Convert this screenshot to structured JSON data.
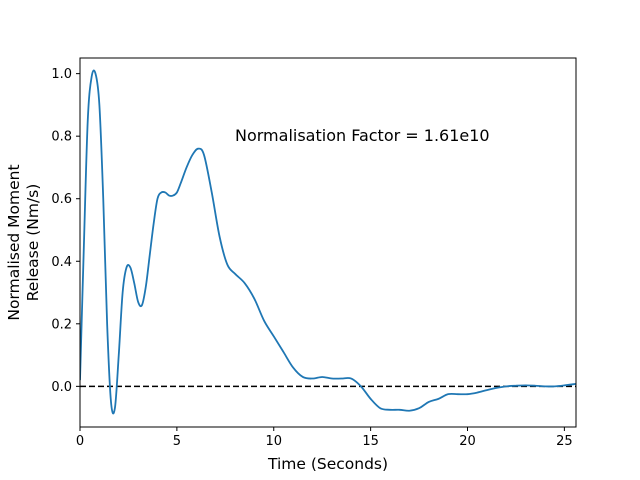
{
  "chart_data": {
    "type": "line",
    "title": "",
    "xlabel": "Time (Seconds)",
    "ylabel_lines": [
      "Normalised Moment",
      "Release (Nm/s)"
    ],
    "xlim": [
      0,
      25.6
    ],
    "ylim": [
      -0.13,
      1.05
    ],
    "xticks": [
      0,
      5,
      10,
      15,
      20,
      25
    ],
    "yticks": [
      0.0,
      0.2,
      0.4,
      0.6,
      0.8,
      1.0
    ],
    "xtick_labels": [
      "0",
      "5",
      "10",
      "15",
      "20",
      "25"
    ],
    "ytick_labels": [
      "0.0",
      "0.2",
      "0.4",
      "0.6",
      "0.8",
      "1.0"
    ],
    "grid": false,
    "annotation": {
      "text": "Normalisation Factor = 1.61e10",
      "x": 8.0,
      "y": 0.8
    },
    "reference_line": {
      "y": 0.0,
      "style": "dashed",
      "color": "#000000"
    },
    "series": [
      {
        "color": "#1f77b4",
        "x": [
          0,
          0.2,
          0.4,
          0.6,
          0.8,
          1.0,
          1.2,
          1.4,
          1.6,
          1.8,
          2.0,
          2.2,
          2.4,
          2.6,
          2.8,
          3.0,
          3.2,
          3.4,
          3.6,
          3.8,
          4.0,
          4.2,
          4.4,
          4.6,
          4.8,
          5.0,
          5.2,
          5.5,
          5.8,
          6.1,
          6.4,
          6.8,
          7.2,
          7.6,
          8.0,
          8.5,
          9.0,
          9.5,
          10.0,
          10.5,
          11.0,
          11.5,
          12.0,
          12.5,
          13.0,
          13.5,
          14.0,
          14.5,
          15.0,
          15.5,
          16.0,
          16.5,
          17.0,
          17.5,
          18.0,
          18.5,
          19.0,
          19.5,
          20.0,
          20.5,
          21.0,
          21.5,
          22.0,
          22.5,
          23.0,
          23.5,
          24.0,
          24.5,
          25.0,
          25.6
        ],
        "y": [
          0.02,
          0.45,
          0.85,
          0.99,
          1.0,
          0.9,
          0.6,
          0.2,
          -0.05,
          -0.07,
          0.1,
          0.3,
          0.38,
          0.38,
          0.33,
          0.27,
          0.26,
          0.32,
          0.42,
          0.52,
          0.6,
          0.62,
          0.62,
          0.61,
          0.61,
          0.62,
          0.65,
          0.7,
          0.74,
          0.76,
          0.74,
          0.62,
          0.48,
          0.39,
          0.36,
          0.33,
          0.28,
          0.21,
          0.16,
          0.11,
          0.06,
          0.03,
          0.025,
          0.03,
          0.025,
          0.025,
          0.025,
          0.0,
          -0.04,
          -0.07,
          -0.075,
          -0.075,
          -0.078,
          -0.07,
          -0.05,
          -0.04,
          -0.025,
          -0.025,
          -0.025,
          -0.02,
          -0.012,
          -0.005,
          0.0,
          0.002,
          0.003,
          0.002,
          0.0,
          0.0,
          0.003,
          0.008
        ]
      }
    ]
  }
}
